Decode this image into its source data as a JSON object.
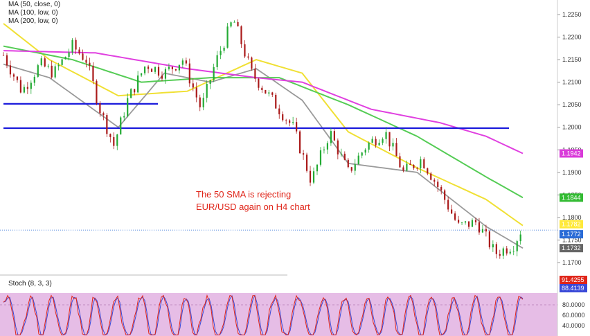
{
  "chart_data": [
    {
      "type": "candlestick",
      "pair": "EUR/USD",
      "timeframe": "H4",
      "annotation": [
        "The 50 SMA is rejecting",
        "EUR/USD again on H4 chart"
      ],
      "legend": [
        "MA (50, close, 0)",
        "MA (100, low, 0)",
        "MA (200, low, 0)"
      ],
      "y_ticks": [
        "1.2250",
        "1.2200",
        "1.2150",
        "1.2100",
        "1.2050",
        "1.2000",
        "1.1950",
        "1.1900",
        "1.1850",
        "1.1800",
        "1.1750",
        "1.1700"
      ],
      "ylim": [
        1.168,
        1.227
      ],
      "price_badges": [
        {
          "label": "1.1942",
          "value": 1.1942,
          "color": "#d93ad9"
        },
        {
          "label": "1.1844",
          "value": 1.1844,
          "color": "#33bb33"
        },
        {
          "label": "1.1782",
          "value": 1.1782,
          "color": "#ffe93b"
        },
        {
          "label": "1.1772",
          "value": 1.1772,
          "color": "#2a6bd6"
        },
        {
          "label": "1.1732",
          "value": 1.1732,
          "color": "#666666"
        }
      ],
      "current_price": 1.1772,
      "horizontal_levels": [
        {
          "value": 1.2052,
          "color": "#1a1adb",
          "from_bar": 0,
          "to_bar": 47
        },
        {
          "value": 1.1998,
          "color": "#1a1adb",
          "from_bar": 0,
          "to_bar": 150
        }
      ],
      "bars": 150,
      "close_path": [
        [
          0,
          1.216
        ],
        [
          8,
          1.208
        ],
        [
          16,
          1.214
        ],
        [
          22,
          1.212
        ],
        [
          30,
          1.218
        ],
        [
          36,
          1.215
        ],
        [
          42,
          1.204
        ],
        [
          48,
          1.196
        ],
        [
          54,
          1.206
        ],
        [
          62,
          1.214
        ],
        [
          70,
          1.212
        ],
        [
          78,
          1.215
        ],
        [
          86,
          1.204
        ],
        [
          92,
          1.214
        ],
        [
          100,
          1.224
        ],
        [
          108,
          1.212
        ],
        [
          114,
          1.208
        ],
        [
          120,
          1.204
        ],
        [
          126,
          1.2
        ],
        [
          134,
          1.188
        ],
        [
          142,
          1.199
        ],
        [
          150,
          1.19
        ],
        [
          158,
          1.196
        ],
        [
          166,
          1.199
        ],
        [
          174,
          1.19
        ],
        [
          182,
          1.193
        ],
        [
          190,
          1.186
        ],
        [
          198,
          1.178
        ],
        [
          206,
          1.179
        ],
        [
          214,
          1.172
        ],
        [
          222,
          1.174
        ],
        [
          226,
          1.178
        ]
      ],
      "ma_paths": {
        "ma50": {
          "color": "#f0e034",
          "points": [
            [
              0,
              1.223
            ],
            [
              20,
              1.215
            ],
            [
              50,
              1.207
            ],
            [
              80,
              1.208
            ],
            [
              110,
              1.215
            ],
            [
              130,
              1.212
            ],
            [
              150,
              1.199
            ],
            [
              180,
              1.191
            ],
            [
              210,
              1.184
            ],
            [
              226,
              1.1782
            ]
          ]
        },
        "ma100": {
          "color": "#9a9a9a",
          "points": [
            [
              0,
              1.214
            ],
            [
              20,
              1.211
            ],
            [
              50,
              1.2
            ],
            [
              70,
              1.212
            ],
            [
              90,
              1.21
            ],
            [
              110,
              1.213
            ],
            [
              130,
              1.206
            ],
            [
              150,
              1.192
            ],
            [
              180,
              1.19
            ],
            [
              210,
              1.178
            ],
            [
              226,
              1.1732
            ]
          ]
        },
        "ma200": {
          "color": "#55cc55",
          "points": [
            [
              0,
              1.218
            ],
            [
              30,
              1.215
            ],
            [
              60,
              1.21
            ],
            [
              90,
              1.211
            ],
            [
              120,
              1.211
            ],
            [
              150,
              1.205
            ],
            [
              180,
              1.198
            ],
            [
              210,
              1.189
            ],
            [
              226,
              1.1844
            ]
          ]
        },
        "ma_magenta": {
          "color": "#e040e0",
          "points": [
            [
              0,
              1.217
            ],
            [
              40,
              1.2165
            ],
            [
              80,
              1.213
            ],
            [
              110,
              1.211
            ],
            [
              130,
              1.21
            ],
            [
              160,
              1.204
            ],
            [
              190,
              1.201
            ],
            [
              210,
              1.198
            ],
            [
              226,
              1.1942
            ]
          ]
        }
      }
    },
    {
      "type": "line",
      "name": "Stoch (8, 3, 3)",
      "y_ticks": [
        "80.0000",
        "60.0000",
        "40.0000"
      ],
      "ylim": [
        20,
        100
      ],
      "overbought": 80,
      "badges": [
        {
          "label": "91.4255",
          "value": 91.4255,
          "color": "#e0261a"
        },
        {
          "label": "88.4139",
          "value": 88.4139,
          "color": "#3a4ad8"
        }
      ]
    }
  ]
}
